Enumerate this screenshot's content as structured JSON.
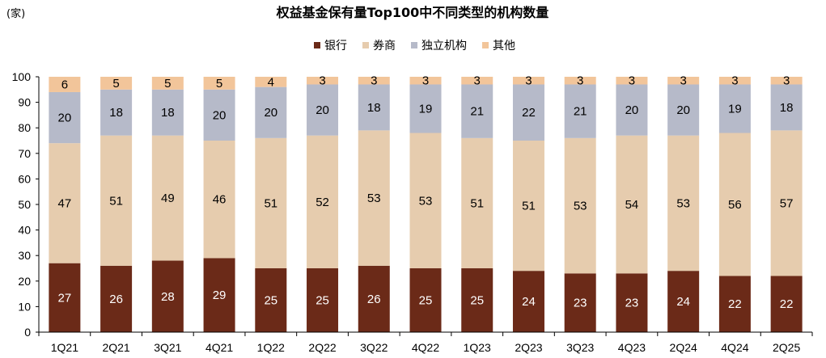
{
  "chart_data": {
    "type": "bar",
    "stacked": true,
    "title": "权益基金保有量Top100中不同类型的机构数量",
    "unit_label": "(家)",
    "categories": [
      "1Q21",
      "2Q21",
      "3Q21",
      "4Q21",
      "1Q22",
      "2Q22",
      "3Q22",
      "4Q22",
      "1Q23",
      "2Q23",
      "3Q23",
      "4Q23",
      "2Q24",
      "4Q24",
      "2Q25"
    ],
    "series": [
      {
        "name": "银行",
        "color": "#6B2A18",
        "label_color": "#ffffff",
        "values": [
          27,
          26,
          28,
          29,
          25,
          25,
          26,
          25,
          25,
          24,
          23,
          23,
          24,
          22,
          22
        ]
      },
      {
        "name": "券商",
        "color": "#E6CCAE",
        "label_color": "#000000",
        "values": [
          47,
          51,
          49,
          46,
          51,
          52,
          53,
          53,
          51,
          51,
          53,
          54,
          53,
          56,
          57
        ]
      },
      {
        "name": "独立机构",
        "color": "#B6BAC9",
        "label_color": "#000000",
        "values": [
          20,
          18,
          18,
          20,
          20,
          20,
          18,
          19,
          21,
          22,
          21,
          20,
          20,
          19,
          18
        ]
      },
      {
        "name": "其他",
        "color": "#F2C59A",
        "label_color": "#000000",
        "values": [
          6,
          5,
          5,
          5,
          4,
          3,
          3,
          3,
          3,
          3,
          3,
          3,
          3,
          3,
          3
        ]
      }
    ],
    "ylim": [
      0,
      100
    ],
    "yticks": [
      0,
      10,
      20,
      30,
      40,
      50,
      60,
      70,
      80,
      90,
      100
    ],
    "legend_position": "top-center",
    "grid": false
  }
}
